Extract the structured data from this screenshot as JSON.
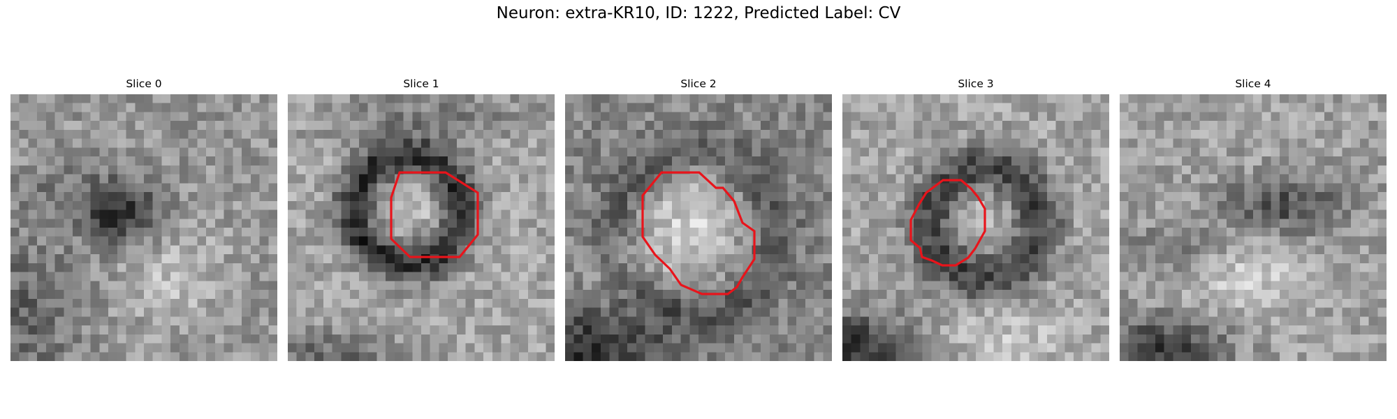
{
  "figure": {
    "title": "Neuron: extra-KR10, ID: 1222, Predicted Label: CV"
  },
  "panels": [
    {
      "title": "Slice 0",
      "has_contour": false
    },
    {
      "title": "Slice 1",
      "has_contour": true
    },
    {
      "title": "Slice 2",
      "has_contour": true
    },
    {
      "title": "Slice 3",
      "has_contour": true
    },
    {
      "title": "Slice 4",
      "has_contour": false
    }
  ],
  "colors": {
    "contour": "#e8141b",
    "colormap": "gray"
  }
}
